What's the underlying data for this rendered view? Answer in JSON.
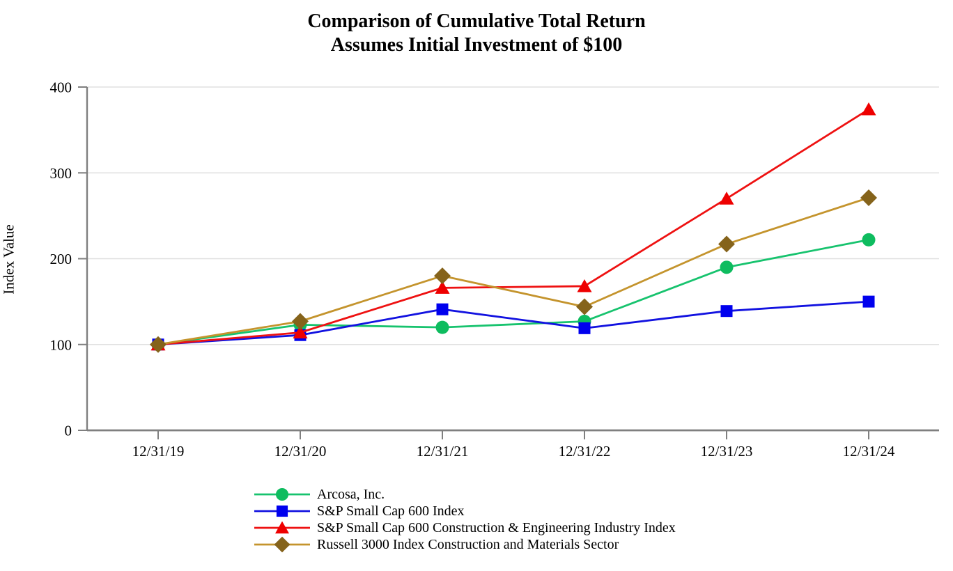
{
  "title": {
    "line1": "Comparison of Cumulative Total Return",
    "line2": "Assumes Initial Investment of $100"
  },
  "chart_data": {
    "type": "line",
    "title": "Comparison of Cumulative Total Return",
    "subtitle": "Assumes Initial Investment of $100",
    "xlabel": "",
    "ylabel": "Index Value",
    "ylim": [
      0,
      400
    ],
    "yticks": [
      0,
      100,
      200,
      300,
      400
    ],
    "grid": "horizontal",
    "legend_position": "bottom-left",
    "axis_color": "#7f7f7f",
    "grid_color": "#e0e0e0",
    "categories": [
      "12/31/19",
      "12/31/20",
      "12/31/21",
      "12/31/22",
      "12/31/23",
      "12/31/24"
    ],
    "series": [
      {
        "name": "Arcosa, Inc.",
        "marker": "circle",
        "color": "#17c36e",
        "marker_color": "#0ebc5f",
        "values": [
          100,
          123,
          120,
          127,
          190,
          222
        ]
      },
      {
        "name": "S&P Small Cap 600 Index",
        "marker": "square",
        "color": "#1212e0",
        "marker_color": "#0000ee",
        "values": [
          100,
          111,
          141,
          119,
          139,
          150
        ]
      },
      {
        "name": "S&P Small Cap 600 Construction & Engineering Industry Index",
        "marker": "triangle",
        "color": "#ee1111",
        "marker_color": "#ee0000",
        "values": [
          100,
          114,
          166,
          168,
          270,
          374
        ]
      },
      {
        "name": "Russell 3000 Index Construction and Materials Sector",
        "marker": "diamond",
        "color": "#c4942d",
        "marker_color": "#85631b",
        "values": [
          100,
          127,
          180,
          144,
          217,
          271
        ]
      }
    ]
  }
}
